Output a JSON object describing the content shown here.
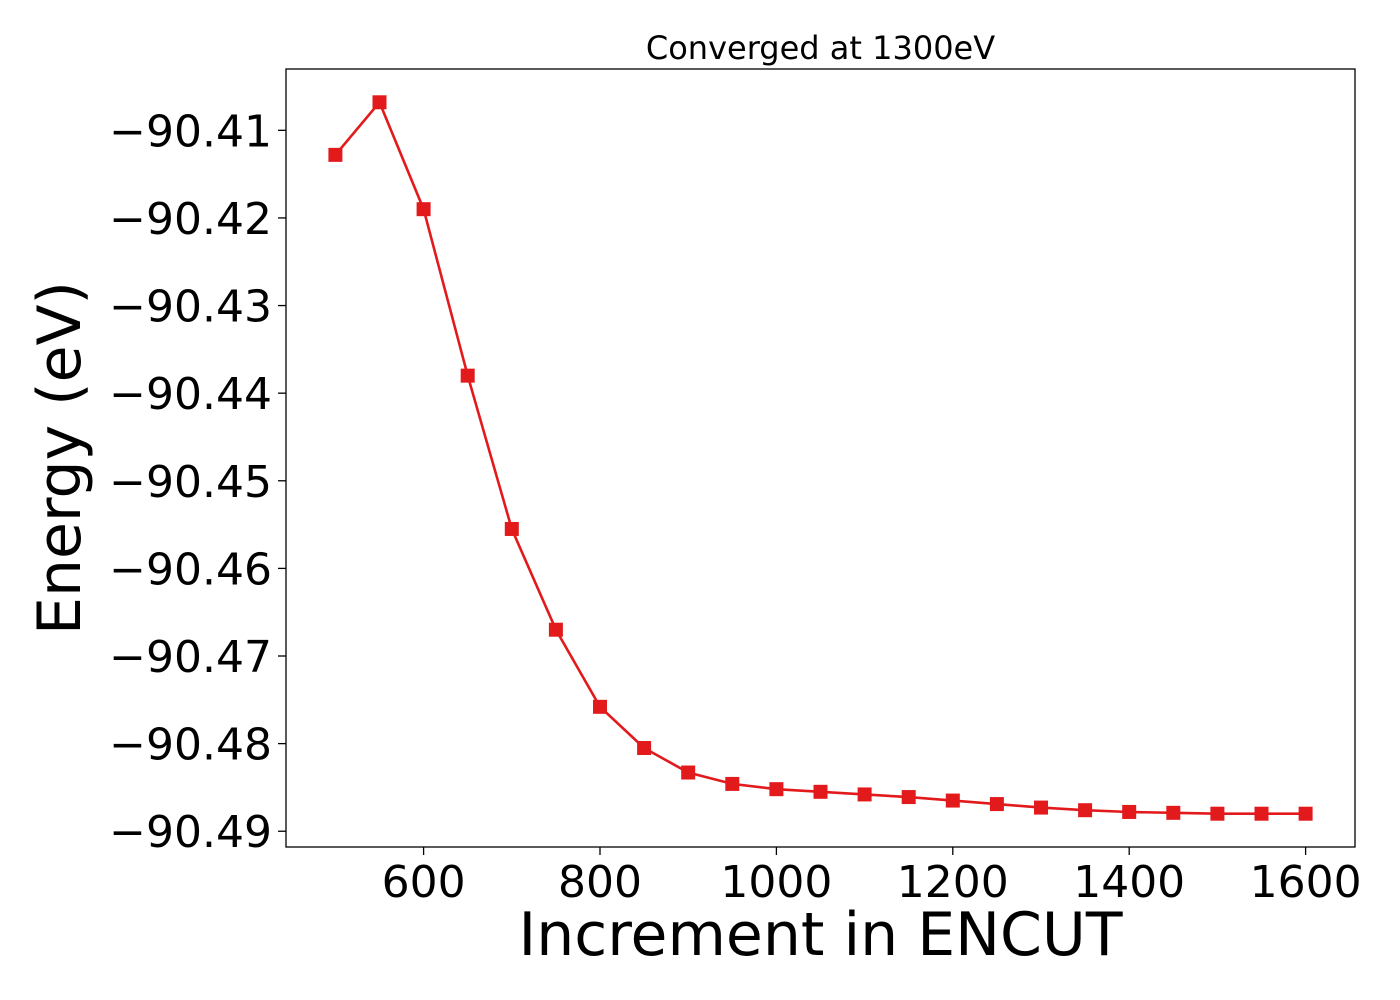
{
  "chart_data": {
    "type": "line",
    "title": "Converged at 1300eV",
    "xlabel": "Increment in ENCUT",
    "ylabel": "Energy (eV)",
    "xlim": [
      444,
      1656
    ],
    "ylim": [
      -90.4918,
      -90.403
    ],
    "xticks": [
      600,
      800,
      1000,
      1200,
      1400,
      1600
    ],
    "yticks": [
      -90.41,
      -90.42,
      -90.43,
      -90.44,
      -90.45,
      -90.46,
      -90.47,
      -90.48,
      -90.49
    ],
    "ytick_labels": [
      "−90.41",
      "−90.42",
      "−90.43",
      "−90.44",
      "−90.45",
      "−90.46",
      "−90.47",
      "−90.48",
      "−90.49"
    ],
    "grid": false,
    "series": [
      {
        "color": "#e31a1c",
        "marker": "square",
        "x": [
          500,
          550,
          600,
          650,
          700,
          750,
          800,
          850,
          900,
          950,
          1000,
          1050,
          1100,
          1150,
          1200,
          1250,
          1300,
          1350,
          1400,
          1450,
          1500,
          1550,
          1600
        ],
        "y": [
          -90.4128,
          -90.4068,
          -90.419,
          -90.438,
          -90.4555,
          -90.467,
          -90.4758,
          -90.4805,
          -90.4833,
          -90.4846,
          -90.4852,
          -90.4855,
          -90.4858,
          -90.4861,
          -90.4865,
          -90.4869,
          -90.4873,
          -90.4876,
          -90.4878,
          -90.4879,
          -90.488,
          -90.488,
          -90.488
        ]
      }
    ]
  }
}
